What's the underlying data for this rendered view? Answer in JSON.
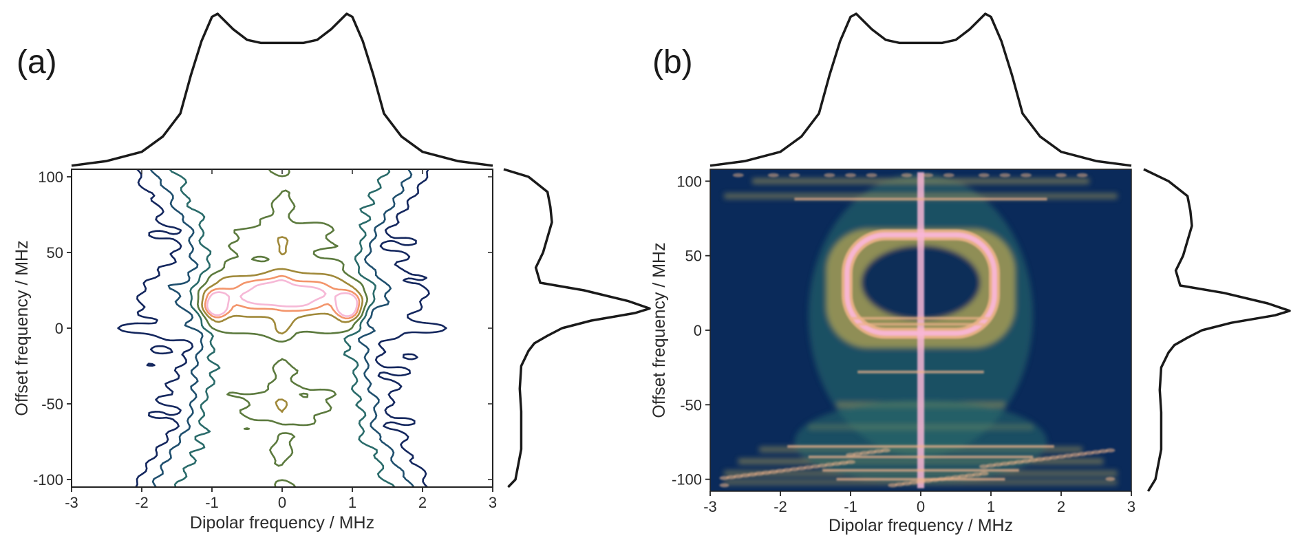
{
  "chart_data": [
    {
      "panel_label": "(a)",
      "type": "contour",
      "xlabel": "Dipolar frequency / MHz",
      "ylabel": "Offset frequency / MHz",
      "xlim": [
        -3,
        3
      ],
      "ylim": [
        -105,
        105
      ],
      "xticks": [
        -3,
        -2,
        -1,
        0,
        1,
        2,
        3
      ],
      "yticks": [
        -100,
        -50,
        0,
        50,
        100
      ],
      "contour_colors": [
        "#14275e",
        "#1f4f6e",
        "#2a6b6a",
        "#5c7a3e",
        "#a0893a",
        "#f3956b",
        "#f6b8d6"
      ],
      "marginal_top": {
        "x": [
          -3.0,
          -2.5,
          -2.0,
          -1.7,
          -1.45,
          -1.3,
          -1.15,
          -1.0,
          -0.92,
          -0.7,
          -0.5,
          -0.3,
          0.0,
          0.3,
          0.5,
          0.7,
          0.92,
          1.0,
          1.15,
          1.3,
          1.45,
          1.7,
          2.0,
          2.5,
          3.0
        ],
        "y": [
          0.01,
          0.04,
          0.1,
          0.2,
          0.35,
          0.6,
          0.82,
          0.98,
          1.0,
          0.9,
          0.83,
          0.81,
          0.81,
          0.81,
          0.83,
          0.9,
          1.0,
          0.98,
          0.82,
          0.6,
          0.35,
          0.2,
          0.1,
          0.04,
          0.01
        ]
      },
      "marginal_right": {
        "y": [
          -105,
          -100,
          -90,
          -80,
          -70,
          -55,
          -40,
          -25,
          -15,
          -10,
          -5,
          0,
          5,
          10,
          13,
          18,
          25,
          30,
          40,
          50,
          60,
          70,
          80,
          90,
          100,
          105
        ],
        "x": [
          0.03,
          0.08,
          0.1,
          0.12,
          0.12,
          0.12,
          0.11,
          0.12,
          0.17,
          0.21,
          0.3,
          0.4,
          0.6,
          0.9,
          1.0,
          0.85,
          0.55,
          0.25,
          0.22,
          0.27,
          0.3,
          0.33,
          0.32,
          0.3,
          0.17,
          0.0
        ]
      }
    },
    {
      "panel_label": "(b)",
      "type": "heatmap",
      "xlabel": "Dipolar frequency / MHz",
      "ylabel": "Offset frequency / MHz",
      "xlim": [
        -3,
        3
      ],
      "ylim": [
        -108,
        108
      ],
      "xticks": [
        -3,
        -2,
        -1,
        0,
        1,
        2,
        3
      ],
      "yticks": [
        -100,
        -50,
        0,
        50,
        100
      ],
      "colormap": [
        "#0a2a5a",
        "#2b6f6b",
        "#a59a55",
        "#f0b48a",
        "#f8b6d6"
      ],
      "marginal_top": {
        "x": [
          -3.0,
          -2.5,
          -2.0,
          -1.7,
          -1.45,
          -1.3,
          -1.15,
          -1.0,
          -0.92,
          -0.7,
          -0.5,
          -0.3,
          0.0,
          0.3,
          0.5,
          0.7,
          0.92,
          1.0,
          1.15,
          1.3,
          1.45,
          1.7,
          2.0,
          2.5,
          3.0
        ],
        "y": [
          0.01,
          0.04,
          0.1,
          0.2,
          0.35,
          0.6,
          0.82,
          0.98,
          1.0,
          0.9,
          0.83,
          0.81,
          0.81,
          0.81,
          0.83,
          0.9,
          1.0,
          0.98,
          0.82,
          0.6,
          0.35,
          0.2,
          0.1,
          0.04,
          0.01
        ]
      },
      "marginal_right": {
        "y": [
          -108,
          -100,
          -90,
          -80,
          -70,
          -55,
          -40,
          -25,
          -15,
          -10,
          -5,
          0,
          5,
          10,
          13,
          18,
          25,
          30,
          40,
          50,
          60,
          70,
          80,
          90,
          100,
          108
        ],
        "x": [
          0.03,
          0.08,
          0.1,
          0.12,
          0.12,
          0.12,
          0.11,
          0.12,
          0.17,
          0.21,
          0.3,
          0.4,
          0.6,
          0.9,
          1.0,
          0.85,
          0.55,
          0.25,
          0.22,
          0.27,
          0.3,
          0.33,
          0.32,
          0.3,
          0.17,
          0.0
        ]
      }
    }
  ]
}
